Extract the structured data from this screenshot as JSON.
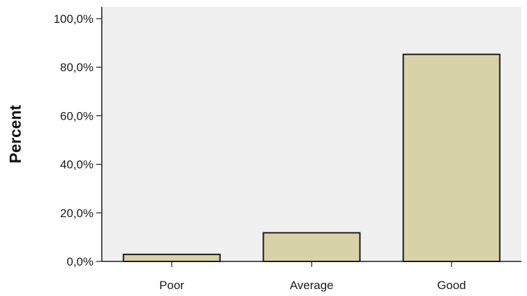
{
  "chart_data": {
    "type": "bar",
    "categories": [
      "Poor",
      "Average",
      "Good"
    ],
    "values": [
      2.9,
      11.8,
      85.3
    ],
    "ylabel": "Percent",
    "xlabel": "",
    "title": "",
    "ylim": [
      0,
      100
    ],
    "y_ticks": [
      0,
      20,
      40,
      60,
      80,
      100
    ],
    "y_tick_labels": [
      "0,0%",
      "20,0%",
      "40,0%",
      "60,0%",
      "80,0%",
      "100,0%"
    ],
    "grid": false,
    "legend": "none",
    "colors": {
      "plot_background": "#f0f0f0",
      "bar_fill": "#d8d2a8",
      "bar_stroke": "#1a1a1a",
      "axis": "#1a1a1a"
    }
  }
}
